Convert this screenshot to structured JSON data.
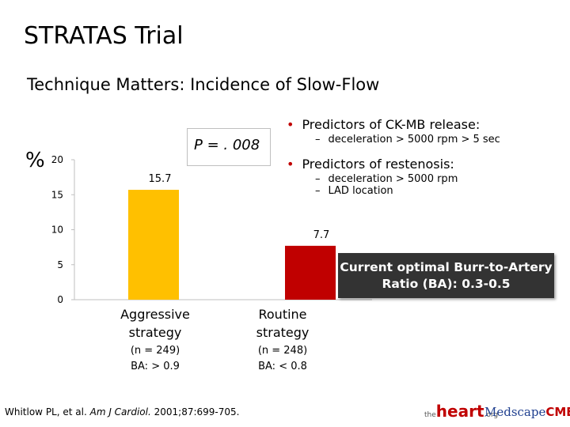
{
  "slide": {
    "title": "STRATAS Trial",
    "subtitle": "Technique Matters: Incidence of Slow-Flow",
    "p_value": "P = . 008",
    "bullets": [
      {
        "text": "Predictors of CK-MB release:",
        "subs": [
          "deceleration > 5000 rpm > 5 sec"
        ]
      },
      {
        "text": "Predictors of restenosis:",
        "subs": [
          "deceleration > 5000 rpm",
          "LAD location"
        ]
      }
    ],
    "callout": "Current optimal Burr-to-Artery Ratio (BA): 0.3-0.5",
    "citation_authors": "Whitlow PL, et al.",
    "citation_journal": "Am J Cardiol.",
    "citation_ref": "2001;87:699-705.",
    "logo_heart": "heart",
    "logo_heart_the": "the",
    "logo_heart_org": ".org",
    "logo_medscape": "Medscape",
    "logo_cme": "CME"
  },
  "chart_data": {
    "type": "bar",
    "ylabel": "%",
    "ylim": [
      0,
      20
    ],
    "yticks": [
      0,
      5,
      10,
      15,
      20
    ],
    "categories": [
      "Aggressive strategy",
      "Routine strategy"
    ],
    "category_lines": [
      [
        "Aggressive",
        "strategy"
      ],
      [
        "Routine",
        "strategy"
      ]
    ],
    "category_sub": [
      [
        "(n = 249)",
        "BA: > 0.9"
      ],
      [
        "(n = 248)",
        "BA: < 0.8"
      ]
    ],
    "values": [
      15.7,
      7.7
    ],
    "value_labels": [
      "15.7",
      "7.7"
    ],
    "colors": [
      "#FFC000",
      "#C00000"
    ]
  }
}
